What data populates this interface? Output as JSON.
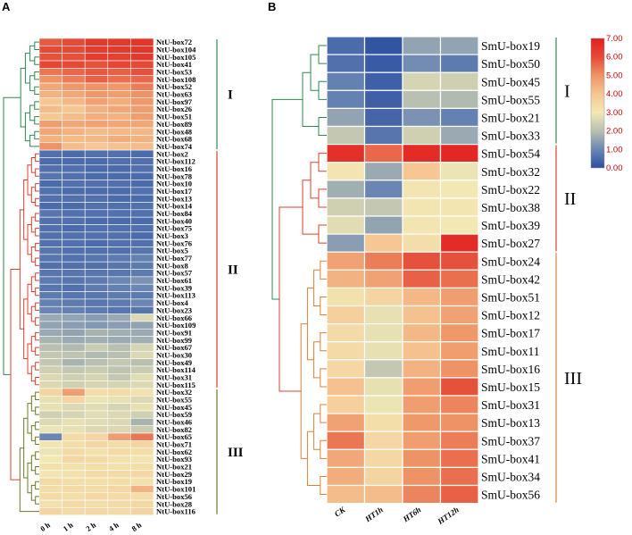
{
  "chart_data": [
    {
      "panel_label": "A",
      "type": "heatmap",
      "columns": [
        "0 h",
        "1 h",
        "2 h",
        "4 h",
        "8 h"
      ],
      "rows": [
        "NtU-box72",
        "NtU-box104",
        "NtU-box105",
        "NtU-box41",
        "NtU-box53",
        "NtU-box108",
        "NtU-box52",
        "NtU-box63",
        "NtU-box97",
        "NtU-box26",
        "NtU-box51",
        "NtU-box89",
        "NtU-box48",
        "NtU-box68",
        "NtU-box74",
        "NtU-box2",
        "NtU-box112",
        "NtU-box16",
        "NtU-box78",
        "NtU-box10",
        "NtU-box17",
        "NtU-box13",
        "NtU-box14",
        "NtU-box84",
        "NtU-box40",
        "NtU-box75",
        "NtU-box3",
        "NtU-box76",
        "NtU-box5",
        "NtU-box77",
        "NtU-box8",
        "NtU-box57",
        "NtU-box61",
        "NtU-box39",
        "NtU-box113",
        "NtU-box4",
        "NtU-box23",
        "NtU-box66",
        "NtU-box109",
        "NtU-box91",
        "NtU-box99",
        "NtU-box67",
        "NtU-box30",
        "NtU-box49",
        "NtU-box114",
        "NtU-box31",
        "NtU-box115",
        "NtU-box32",
        "NtU-box55",
        "NtU-box45",
        "NtU-box59",
        "NtU-box46",
        "NtU-box82",
        "NtU-box65",
        "NtU-box71",
        "NtU-box62",
        "NtU-box93",
        "NtU-box21",
        "NtU-box29",
        "NtU-box19",
        "NtU-box101",
        "NtU-box56",
        "NtU-box28",
        "NtU-box116"
      ],
      "values": [
        [
          5.8,
          6.0,
          6.4,
          6.4,
          6.5
        ],
        [
          6.0,
          6.0,
          6.3,
          6.4,
          6.5
        ],
        [
          5.9,
          5.9,
          6.3,
          6.2,
          6.4
        ],
        [
          6.1,
          6.0,
          5.9,
          6.1,
          6.0
        ],
        [
          5.4,
          5.6,
          5.8,
          5.7,
          5.9
        ],
        [
          5.0,
          5.3,
          5.7,
          5.5,
          5.6
        ],
        [
          4.6,
          4.9,
          5.0,
          4.9,
          5.3
        ],
        [
          4.4,
          4.6,
          4.9,
          4.8,
          5.0
        ],
        [
          4.0,
          4.3,
          4.7,
          4.5,
          4.9
        ],
        [
          4.2,
          4.0,
          4.4,
          4.6,
          4.8
        ],
        [
          4.0,
          4.2,
          4.5,
          4.4,
          4.8
        ],
        [
          4.8,
          4.6,
          4.7,
          4.6,
          4.6
        ],
        [
          4.6,
          4.4,
          4.2,
          4.3,
          4.3
        ],
        [
          4.4,
          4.2,
          4.3,
          4.5,
          4.4
        ],
        [
          5.0,
          4.2,
          4.0,
          4.1,
          4.2
        ],
        [
          0.6,
          0.5,
          0.6,
          0.6,
          0.5
        ],
        [
          0.5,
          0.5,
          0.5,
          0.6,
          0.6
        ],
        [
          0.6,
          0.6,
          0.5,
          0.5,
          0.6
        ],
        [
          0.7,
          0.6,
          0.5,
          0.5,
          0.5
        ],
        [
          0.5,
          0.6,
          0.6,
          0.6,
          0.5
        ],
        [
          0.6,
          0.5,
          0.5,
          0.5,
          0.6
        ],
        [
          0.6,
          0.6,
          0.6,
          0.5,
          0.5
        ],
        [
          0.5,
          0.5,
          0.6,
          0.6,
          0.6
        ],
        [
          0.7,
          0.6,
          0.6,
          0.6,
          0.6
        ],
        [
          0.6,
          0.6,
          0.5,
          0.5,
          0.5
        ],
        [
          0.6,
          0.5,
          0.6,
          0.6,
          0.6
        ],
        [
          0.6,
          0.6,
          0.6,
          0.6,
          0.5
        ],
        [
          0.6,
          0.6,
          0.5,
          0.6,
          0.6
        ],
        [
          0.7,
          0.6,
          0.6,
          0.6,
          0.7
        ],
        [
          0.7,
          0.6,
          0.7,
          0.8,
          0.9
        ],
        [
          0.6,
          0.6,
          0.6,
          0.7,
          0.8
        ],
        [
          0.7,
          0.7,
          0.7,
          0.7,
          0.8
        ],
        [
          0.8,
          0.7,
          0.8,
          1.0,
          1.2
        ],
        [
          0.7,
          0.6,
          0.8,
          0.9,
          1.0
        ],
        [
          0.8,
          0.7,
          0.7,
          0.8,
          0.8
        ],
        [
          0.9,
          0.8,
          0.7,
          0.8,
          1.0
        ],
        [
          1.0,
          0.9,
          0.8,
          0.7,
          0.7
        ],
        [
          1.6,
          1.5,
          1.4,
          1.6,
          2.6
        ],
        [
          1.5,
          1.4,
          1.3,
          1.4,
          1.5
        ],
        [
          1.6,
          1.5,
          1.8,
          1.7,
          1.6
        ],
        [
          1.8,
          1.6,
          1.7,
          1.6,
          1.7
        ],
        [
          2.0,
          1.9,
          2.3,
          2.0,
          2.5
        ],
        [
          2.2,
          2.1,
          1.9,
          2.0,
          2.6
        ],
        [
          2.2,
          1.8,
          2.0,
          2.2,
          2.0
        ],
        [
          2.4,
          2.2,
          2.3,
          2.1,
          2.3
        ],
        [
          2.6,
          2.4,
          2.5,
          2.2,
          2.7
        ],
        [
          2.6,
          2.4,
          2.5,
          2.5,
          2.6
        ],
        [
          3.6,
          4.8,
          3.3,
          3.4,
          3.2
        ],
        [
          2.8,
          3.6,
          2.9,
          2.8,
          2.6
        ],
        [
          2.8,
          2.6,
          2.7,
          2.5,
          2.8
        ],
        [
          2.4,
          2.5,
          2.7,
          2.6,
          2.4
        ],
        [
          2.6,
          2.8,
          2.7,
          2.6,
          1.8
        ],
        [
          2.9,
          2.8,
          2.6,
          2.6,
          2.3
        ],
        [
          1.0,
          3.4,
          3.6,
          4.8,
          5.4
        ],
        [
          3.1,
          3.3,
          3.5,
          3.3,
          3.6
        ],
        [
          2.9,
          3.4,
          3.2,
          3.4,
          3.3
        ],
        [
          3.0,
          3.5,
          3.4,
          3.2,
          3.1
        ],
        [
          3.2,
          3.2,
          3.3,
          3.2,
          3.3
        ],
        [
          3.1,
          3.2,
          3.4,
          3.4,
          3.5
        ],
        [
          3.4,
          3.3,
          3.3,
          3.3,
          3.2
        ],
        [
          3.3,
          3.4,
          3.3,
          3.5,
          4.4
        ],
        [
          3.4,
          3.3,
          3.5,
          3.4,
          3.3
        ],
        [
          3.2,
          3.4,
          3.3,
          3.4,
          3.5
        ],
        [
          3.6,
          3.4,
          3.5,
          3.4,
          3.6
        ]
      ],
      "groups": [
        {
          "label": "I",
          "first_row": 0,
          "last_row": 14
        },
        {
          "label": "II",
          "first_row": 15,
          "last_row": 46
        },
        {
          "label": "III",
          "first_row": 47,
          "last_row": 63
        }
      ],
      "value_range": [
        0,
        7
      ]
    },
    {
      "panel_label": "B",
      "type": "heatmap",
      "columns": [
        "CK",
        "HT1h",
        "HT6h",
        "HT12h"
      ],
      "rows": [
        "SmU-box19",
        "SmU-box50",
        "SmU-box45",
        "SmU-box55",
        "SmU-box21",
        "SmU-box33",
        "SmU-box54",
        "SmU-box32",
        "SmU-box22",
        "SmU-box38",
        "SmU-box39",
        "SmU-box27",
        "SmU-box24",
        "SmU-box42",
        "SmU-box51",
        "SmU-box12",
        "SmU-box17",
        "SmU-box11",
        "SmU-box16",
        "SmU-box15",
        "SmU-box31",
        "SmU-box13",
        "SmU-box37",
        "SmU-box41",
        "SmU-box34",
        "SmU-box56"
      ],
      "values": [
        [
          0.5,
          0.1,
          1.5,
          1.5
        ],
        [
          0.6,
          0.2,
          1.1,
          0.8
        ],
        [
          0.9,
          0.3,
          2.5,
          2.4
        ],
        [
          0.9,
          0.3,
          2.0,
          1.9
        ],
        [
          1.5,
          0.4,
          1.2,
          0.9
        ],
        [
          2.2,
          0.7,
          2.4,
          1.6
        ],
        [
          6.6,
          5.6,
          6.7,
          6.8
        ],
        [
          3.1,
          1.6,
          4.0,
          2.9
        ],
        [
          1.7,
          1.0,
          3.1,
          3.0
        ],
        [
          2.4,
          2.2,
          3.1,
          3.1
        ],
        [
          2.7,
          1.5,
          3.1,
          3.0
        ],
        [
          1.4,
          4.0,
          3.3,
          6.7
        ],
        [
          4.7,
          5.3,
          5.9,
          5.9
        ],
        [
          4.4,
          4.7,
          5.7,
          5.5
        ],
        [
          3.2,
          3.6,
          4.3,
          4.8
        ],
        [
          3.7,
          2.8,
          4.1,
          4.7
        ],
        [
          3.4,
          2.8,
          4.3,
          4.9
        ],
        [
          3.4,
          2.8,
          4.1,
          4.8
        ],
        [
          3.5,
          2.2,
          4.4,
          5.0
        ],
        [
          4.1,
          2.8,
          4.8,
          5.9
        ],
        [
          3.7,
          2.9,
          4.8,
          5.2
        ],
        [
          4.7,
          3.3,
          4.9,
          5.0
        ],
        [
          5.4,
          3.5,
          4.8,
          5.3
        ],
        [
          4.6,
          3.5,
          5.0,
          5.5
        ],
        [
          4.5,
          3.6,
          5.0,
          5.5
        ],
        [
          4.2,
          4.2,
          5.2,
          5.7
        ]
      ],
      "groups": [
        {
          "label": "I",
          "first_row": 0,
          "last_row": 5
        },
        {
          "label": "II",
          "first_row": 6,
          "last_row": 11
        },
        {
          "label": "III",
          "first_row": 12,
          "last_row": 25
        }
      ],
      "colorbar_ticks": [
        "0.00",
        "1.00",
        "2.00",
        "3.00",
        "4.00",
        "5.00",
        "6.00",
        "7.00"
      ],
      "value_range": [
        0,
        7
      ]
    }
  ],
  "colors": {
    "scale": [
      "#2c4fa0",
      "#6b86b3",
      "#b9c0b1",
      "#f1e8b4",
      "#f6c693",
      "#ee9366",
      "#e54a37",
      "#e21f1f"
    ],
    "tree_group1": "#2f8a4f",
    "tree_group2": "#d9412f",
    "tree_group3": "#6d7a2a",
    "tree_groupB3": "#d78237"
  }
}
